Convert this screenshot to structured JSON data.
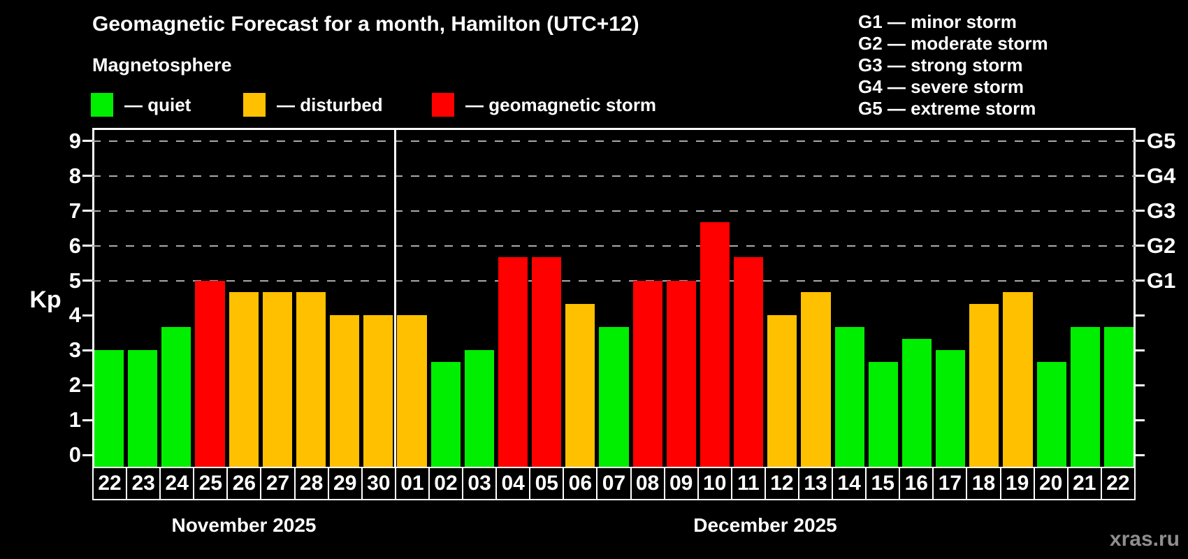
{
  "header": {
    "title": "Geomagnetic Forecast for a month, Hamilton (UTC+12)",
    "subtitle": "Magnetosphere"
  },
  "legend": {
    "items": [
      {
        "key": "quiet",
        "label": "— quiet",
        "color": "#00ee00"
      },
      {
        "key": "disturbed",
        "label": "— disturbed",
        "color": "#ffc000"
      },
      {
        "key": "storm",
        "label": "— geomagnetic storm",
        "color": "#ff0000"
      }
    ]
  },
  "g_legend": {
    "lines": [
      "G1 — minor storm",
      "G2 — moderate storm",
      "G3 — strong storm",
      "G4 — severe storm",
      "G5 — extreme storm"
    ]
  },
  "axes": {
    "y_label": "Kp",
    "y_ticks": [
      "0",
      "1",
      "2",
      "3",
      "4",
      "5",
      "6",
      "7",
      "8",
      "9"
    ],
    "g_labels": [
      {
        "kp": 5,
        "label": "G1"
      },
      {
        "kp": 6,
        "label": "G2"
      },
      {
        "kp": 7,
        "label": "G3"
      },
      {
        "kp": 8,
        "label": "G4"
      },
      {
        "kp": 9,
        "label": "G5"
      }
    ]
  },
  "months": [
    {
      "label": "November 2025",
      "days": 9
    },
    {
      "label": "December 2025",
      "days": 22
    }
  ],
  "watermark": "xras.ru",
  "chart_data": {
    "type": "bar",
    "title": "Geomagnetic Forecast for a month, Hamilton (UTC+12)",
    "xlabel": "",
    "ylabel": "Kp",
    "ylim": [
      0,
      9
    ],
    "grid": "dashed horizontal lines at Kp 5-9 (G1-G5 levels) only",
    "legend_position": "top-left",
    "categories": [
      "22",
      "23",
      "24",
      "25",
      "26",
      "27",
      "28",
      "29",
      "30",
      "01",
      "02",
      "03",
      "04",
      "05",
      "06",
      "07",
      "08",
      "09",
      "10",
      "11",
      "12",
      "13",
      "14",
      "15",
      "16",
      "17",
      "18",
      "19",
      "20",
      "21",
      "22"
    ],
    "values": [
      3.0,
      3.0,
      3.67,
      5.0,
      4.67,
      4.67,
      4.67,
      4.0,
      4.0,
      4.0,
      2.67,
      3.0,
      5.67,
      5.67,
      4.33,
      3.67,
      5.0,
      5.0,
      6.67,
      5.67,
      4.0,
      4.67,
      3.67,
      2.67,
      3.33,
      3.0,
      4.33,
      4.67,
      2.67,
      3.67,
      3.67
    ],
    "statuses": [
      "quiet",
      "quiet",
      "quiet",
      "storm",
      "disturbed",
      "disturbed",
      "disturbed",
      "disturbed",
      "disturbed",
      "disturbed",
      "quiet",
      "quiet",
      "storm",
      "storm",
      "disturbed",
      "quiet",
      "storm",
      "storm",
      "storm",
      "storm",
      "disturbed",
      "disturbed",
      "quiet",
      "quiet",
      "quiet",
      "quiet",
      "disturbed",
      "disturbed",
      "quiet",
      "quiet",
      "quiet"
    ]
  }
}
